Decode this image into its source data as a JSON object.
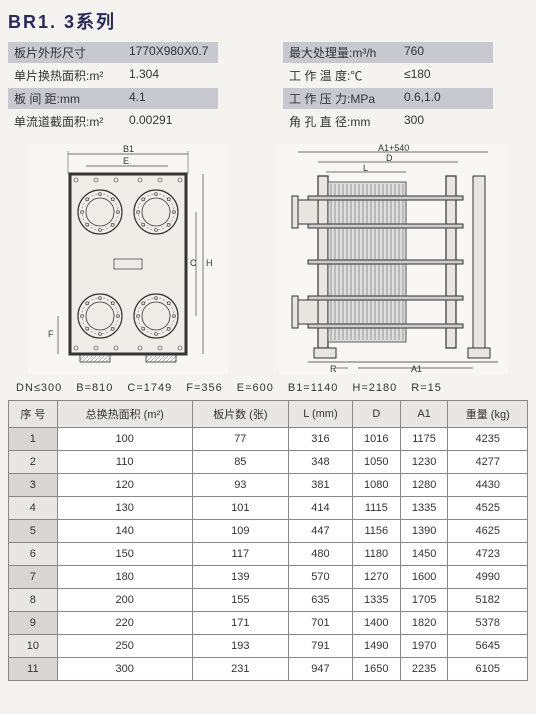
{
  "title": "BR1. 3系列",
  "specs_left": [
    {
      "label": "板片外形尺寸",
      "value": "1770X980X0.7",
      "highlight": true
    },
    {
      "label": "单片换热面积:m²",
      "value": "1.304",
      "highlight": false
    },
    {
      "label": "板 间 距:mm",
      "value": "4.1",
      "highlight": true
    },
    {
      "label": "单流道截面积:m²",
      "value": "0.00291",
      "highlight": false
    }
  ],
  "specs_right": [
    {
      "label": "最大处理量:m³/h",
      "value": "760",
      "highlight": true
    },
    {
      "label": "工 作 温 度:℃",
      "value": "≤180",
      "highlight": false
    },
    {
      "label": "工 作 压 力:MPa",
      "value": "0.6,1.0",
      "highlight": true
    },
    {
      "label": "角 孔 直 径:mm",
      "value": "300",
      "highlight": false
    }
  ],
  "diagram_left_labels": {
    "top1": "B1",
    "top2": "E",
    "side1": "H",
    "side2": "C",
    "bottom": "F"
  },
  "diagram_right_labels": {
    "top1": "A1+540",
    "top2": "D",
    "top3": "L",
    "bottom1": "R",
    "bottom2": "A1"
  },
  "dim_row": [
    {
      "k": "DN",
      "v": "≤300"
    },
    {
      "k": "B",
      "v": "=810"
    },
    {
      "k": "C",
      "v": "=1749"
    },
    {
      "k": "F",
      "v": "=356"
    },
    {
      "k": "E",
      "v": "=600"
    },
    {
      "k": "B1",
      "v": "=1140"
    },
    {
      "k": "H",
      "v": "=2180"
    },
    {
      "k": "R",
      "v": "=15"
    }
  ],
  "table": {
    "columns": [
      "序 号",
      "总换热面积 (m²)",
      "板片数 (张)",
      "L (mm)",
      "D",
      "A1",
      "重量 (kg)"
    ],
    "rows": [
      [
        "1",
        "100",
        "77",
        "316",
        "1016",
        "1175",
        "4235"
      ],
      [
        "2",
        "110",
        "85",
        "348",
        "1050",
        "1230",
        "4277"
      ],
      [
        "3",
        "120",
        "93",
        "381",
        "1080",
        "1280",
        "4430"
      ],
      [
        "4",
        "130",
        "101",
        "414",
        "1115",
        "1335",
        "4525"
      ],
      [
        "5",
        "140",
        "109",
        "447",
        "1156",
        "1390",
        "4625"
      ],
      [
        "6",
        "150",
        "117",
        "480",
        "1180",
        "1450",
        "4723"
      ],
      [
        "7",
        "180",
        "139",
        "570",
        "1270",
        "1600",
        "4990"
      ],
      [
        "8",
        "200",
        "155",
        "635",
        "1335",
        "1705",
        "5182"
      ],
      [
        "9",
        "220",
        "171",
        "701",
        "1400",
        "1820",
        "5378"
      ],
      [
        "10",
        "250",
        "193",
        "791",
        "1490",
        "1970",
        "5645"
      ],
      [
        "11",
        "300",
        "231",
        "947",
        "1650",
        "2235",
        "6105"
      ]
    ]
  }
}
